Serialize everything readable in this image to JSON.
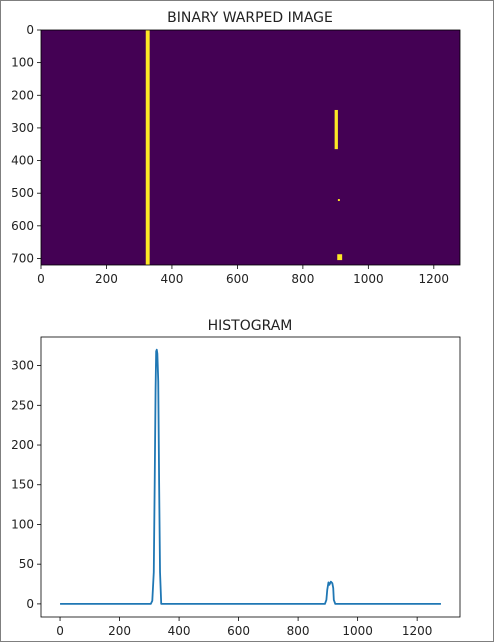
{
  "chart_data": [
    {
      "type": "heatmap",
      "title": "BINARY WARPED IMAGE",
      "xlim": [
        0,
        1280
      ],
      "ylim": [
        720,
        0
      ],
      "xticks": [
        0,
        200,
        400,
        600,
        800,
        1000,
        1200
      ],
      "yticks": [
        0,
        100,
        200,
        300,
        400,
        500,
        600,
        700
      ],
      "background_color": "#440154",
      "pixel_color": "#fde725",
      "regions": [
        {
          "x": [
            320,
            332
          ],
          "y": [
            0,
            720
          ]
        },
        {
          "x": [
            897,
            907
          ],
          "y": [
            245,
            365
          ]
        },
        {
          "x": [
            907,
            913
          ],
          "y": [
            518,
            524
          ]
        },
        {
          "x": [
            905,
            920
          ],
          "y": [
            687,
            705
          ]
        }
      ]
    },
    {
      "type": "line",
      "title": "HISTOGRAM",
      "xlim": [
        0,
        1280
      ],
      "ylim": [
        0,
        330
      ],
      "xticks": [
        0,
        200,
        400,
        600,
        800,
        1000,
        1200
      ],
      "yticks": [
        0,
        50,
        100,
        150,
        200,
        250,
        300
      ],
      "line_color": "#1f77b4",
      "x": [
        0,
        290,
        305,
        310,
        315,
        318,
        321,
        323,
        325,
        327,
        330,
        333,
        336,
        340,
        350,
        880,
        890,
        895,
        898,
        902,
        905,
        910,
        915,
        918,
        920,
        925,
        935,
        1280
      ],
      "y": [
        0,
        0,
        0,
        4,
        40,
        150,
        270,
        318,
        320,
        315,
        280,
        150,
        40,
        0,
        0,
        0,
        0,
        5,
        18,
        27,
        24,
        28,
        26,
        20,
        5,
        0,
        0,
        0
      ]
    }
  ]
}
